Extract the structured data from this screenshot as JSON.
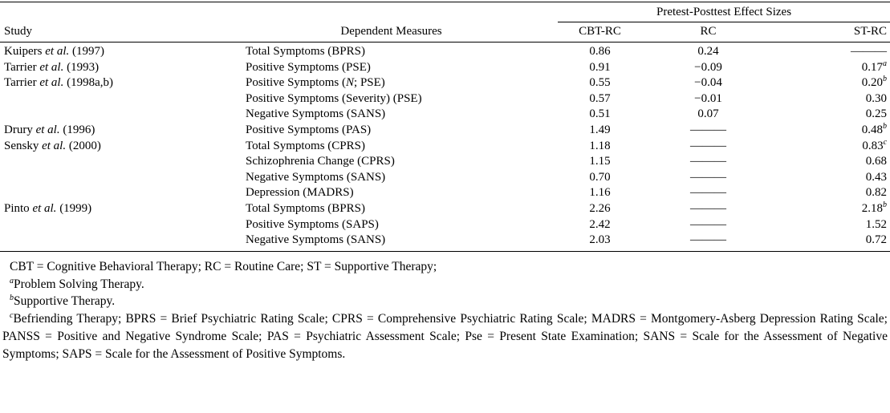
{
  "table": {
    "span_header": "Pretest-Posttest Effect Sizes",
    "columns": {
      "study": "Study",
      "measure": "Dependent Measures",
      "cbt_rc": "CBT-RC",
      "rc": "RC",
      "st_rc": "ST-RC"
    },
    "rows": [
      {
        "study": "Kuipers *et al.* (1997)",
        "measure": "Total Symptoms (BPRS)",
        "cbt_rc": "0.86",
        "rc": "0.24",
        "st_rc": "———"
      },
      {
        "study": "Tarrier *et al.* (1993)",
        "measure": "Positive Symptoms (PSE)",
        "cbt_rc": "0.91",
        "rc": "−0.09",
        "st_rc": "0.17^a^"
      },
      {
        "study": "Tarrier *et al.* (1998a,b)",
        "measure": "Positive Symptoms (*N*; PSE)",
        "cbt_rc": "0.55",
        "rc": "−0.04",
        "st_rc": "0.20^b^"
      },
      {
        "study": "",
        "measure": "Positive Symptoms (Severity) (PSE)",
        "cbt_rc": "0.57",
        "rc": "−0.01",
        "st_rc": "0.30"
      },
      {
        "study": "",
        "measure": "Negative Symptoms (SANS)",
        "cbt_rc": "0.51",
        "rc": "0.07",
        "st_rc": "0.25"
      },
      {
        "study": "Drury *et al.* (1996)",
        "measure": "Positive Symptoms (PAS)",
        "cbt_rc": "1.49",
        "rc": "———",
        "st_rc": "0.48^b^"
      },
      {
        "study": "Sensky *et al.* (2000)",
        "measure": "Total Symptoms (CPRS)",
        "cbt_rc": "1.18",
        "rc": "———",
        "st_rc": "0.83^c^"
      },
      {
        "study": "",
        "measure": "Schizophrenia Change (CPRS)",
        "cbt_rc": "1.15",
        "rc": "———",
        "st_rc": "0.68"
      },
      {
        "study": "",
        "measure": "Negative Symptoms (SANS)",
        "cbt_rc": "0.70",
        "rc": "———",
        "st_rc": "0.43"
      },
      {
        "study": "",
        "measure": "Depression (MADRS)",
        "cbt_rc": "1.16",
        "rc": "———",
        "st_rc": "0.82"
      },
      {
        "study": "Pinto *et al.* (1999)",
        "measure": "Total Symptoms (BPRS)",
        "cbt_rc": "2.26",
        "rc": "———",
        "st_rc": "2.18^b^"
      },
      {
        "study": "",
        "measure": "Positive Symptoms (SAPS)",
        "cbt_rc": "2.42",
        "rc": "———",
        "st_rc": "1.52"
      },
      {
        "study": "",
        "measure": "Negative Symptoms (SANS)",
        "cbt_rc": "2.03",
        "rc": "———",
        "st_rc": "0.72"
      }
    ],
    "footnotes": [
      "CBT = Cognitive Behavioral Therapy; RC = Routine Care; ST = Supportive Therapy;",
      "^a^Problem Solving Therapy.",
      "^b^Supportive Therapy.",
      "^c^Befriending Therapy; BPRS = Brief Psychiatric Rating Scale; CPRS = Comprehensive Psychiatric Rating Scale; MADRS = Montgomery-Asberg Depression Rating Scale; PANSS = Positive and Negative Syndrome Scale; PAS = Psychiatric Assessment Scale; Pse = Present State Examination; SANS = Scale for the Assessment of Negative Symptoms; SAPS = Scale for the Assessment of Positive Symptoms."
    ]
  }
}
